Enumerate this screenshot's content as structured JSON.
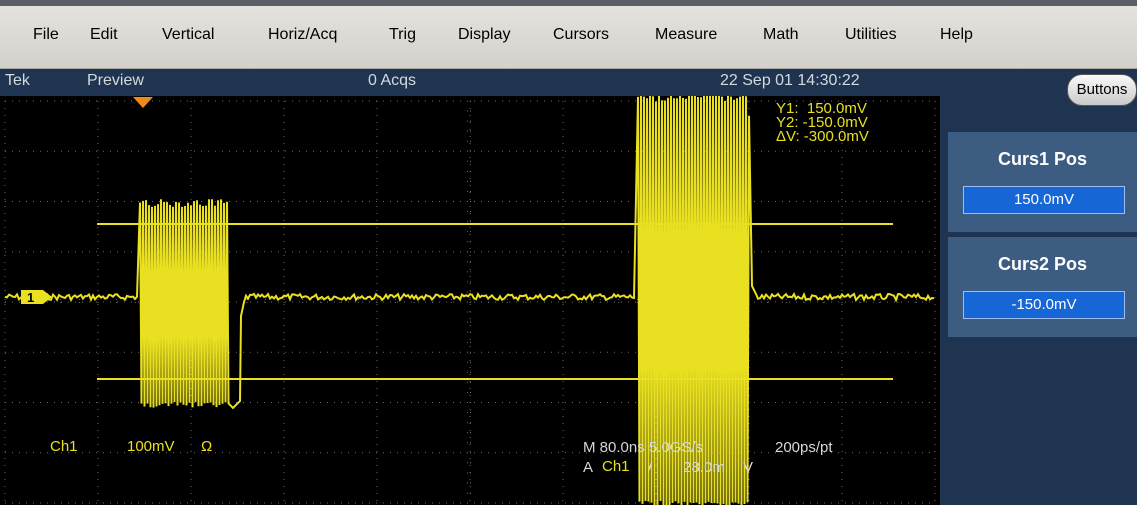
{
  "menubar": {
    "items": [
      {
        "label": "File"
      },
      {
        "label": "Edit"
      },
      {
        "label": "Vertical"
      },
      {
        "label": "Horiz/Acq"
      },
      {
        "label": "Trig"
      },
      {
        "label": "Display"
      },
      {
        "label": "Cursors"
      },
      {
        "label": "Measure"
      },
      {
        "label": "Math"
      },
      {
        "label": "Utilities"
      },
      {
        "label": "Help"
      }
    ]
  },
  "status": {
    "brand": "Tek",
    "mode": "Preview",
    "acqs": "0 Acqs",
    "datetime": "22 Sep 01 14:30:22"
  },
  "cursor_readout": {
    "y1": "Y1:  150.0mV",
    "y2": "Y2: -150.0mV",
    "dv": "ΔV: -300.0mV"
  },
  "channel": {
    "marker": "1",
    "name": "Ch1",
    "scale": "100mV",
    "coupling": "Ω"
  },
  "timebase": {
    "line1": "M 80.0ns 5.0GS/s",
    "sample": "200ps/pt",
    "trigger_prefix": "A",
    "trigger_source": "Ch1",
    "trigger_level": "28.0m",
    "trigger_unit": "V"
  },
  "panel": {
    "buttons_label": "Buttons",
    "curs1_title": "Curs1 Pos",
    "curs1_value": "150.0mV",
    "curs2_title": "Curs2 Pos",
    "curs2_value": "-150.0mV"
  },
  "colors": {
    "trace": "#e8e020",
    "screen": "#000000",
    "panel": "#1f3450",
    "field": "#1666d6"
  }
}
